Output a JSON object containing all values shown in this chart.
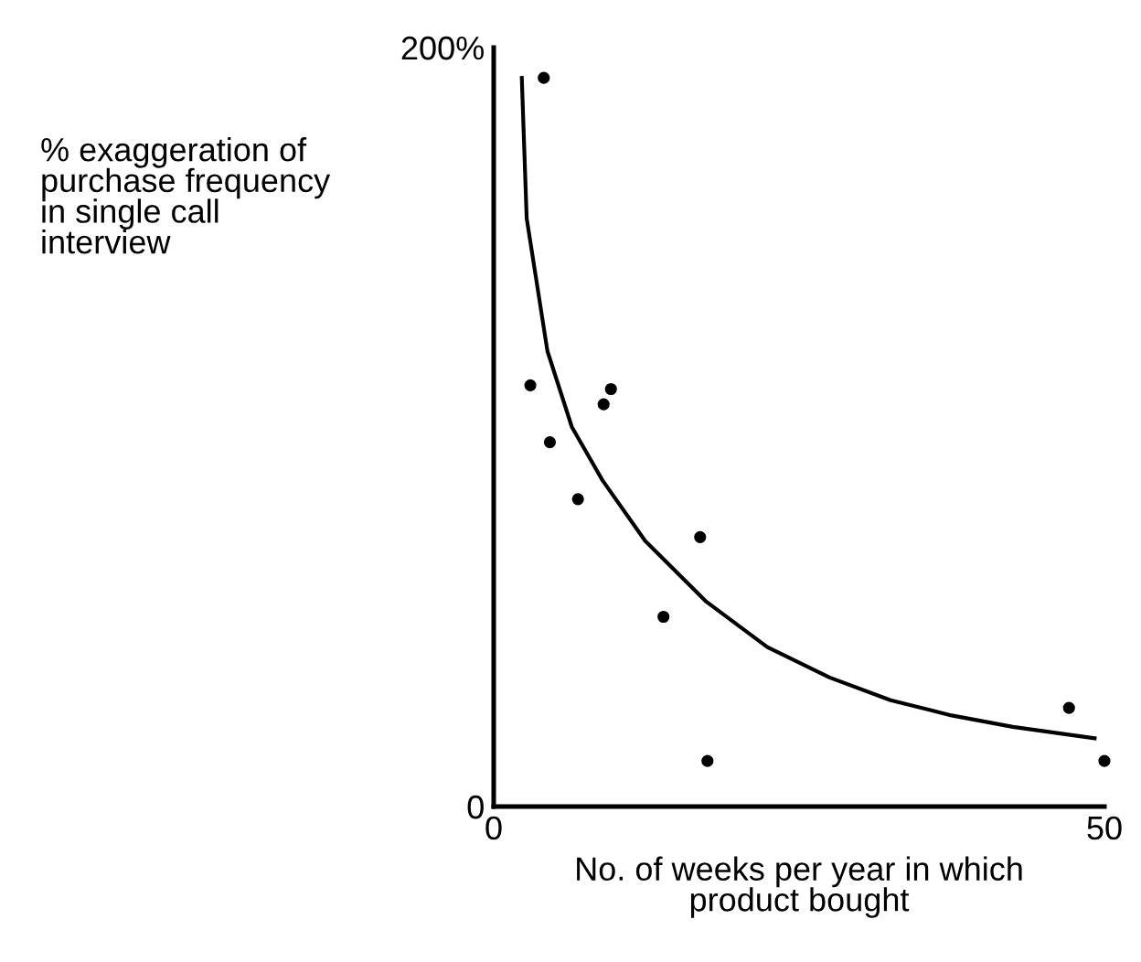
{
  "chart_data": {
    "type": "scatter",
    "xlabel": "No. of weeks per year in which\nproduct bought",
    "ylabel": "% exaggeration of\npurchase frequency\nin single call\ninterview",
    "xlim": [
      0,
      50
    ],
    "ylim": [
      0,
      200
    ],
    "xticks": [
      0,
      50
    ],
    "yticks": [
      0,
      {
        "value": 200,
        "label": "200%"
      }
    ],
    "grid": false,
    "legend": false,
    "marker": "circle",
    "series": [
      {
        "color": "#000000",
        "x": [
          4.1,
          3.0,
          9.6,
          9.0,
          4.6,
          6.9,
          16.9,
          13.9,
          17.5,
          47.1,
          50
        ],
        "values": [
          192,
          111,
          110,
          106,
          96,
          81,
          71,
          50,
          12,
          26,
          12
        ]
      },
      {
        "type": "line",
        "color": "#000000",
        "marker": "none",
        "x": [
          2.3,
          2.7,
          4.4,
          6.4,
          8.9,
          12.4,
          17.4,
          22.4,
          27.5,
          32.5,
          37.5,
          42.5,
          49.2
        ],
        "values": [
          192,
          155,
          120,
          100,
          86,
          70,
          54,
          42,
          34,
          28,
          24,
          21,
          18
        ]
      }
    ]
  }
}
